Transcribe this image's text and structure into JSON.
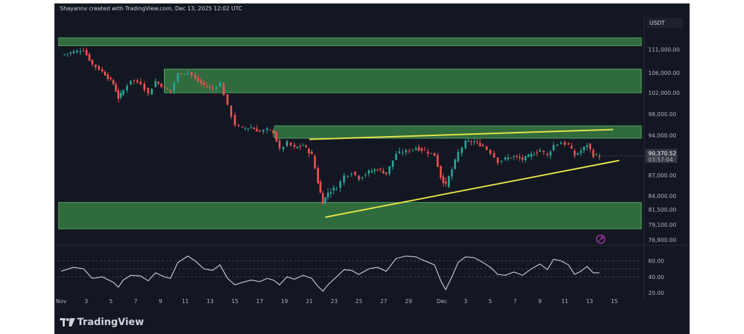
{
  "credit": "Shayannv created with TradingView.com, Dec 13, 2025 12:02 UTC",
  "currency_label": "USDT",
  "brand": "TradingView",
  "colors": {
    "background": "#131722",
    "up": "#26a69a",
    "down": "#ef5350",
    "zone": "#3c8c4a",
    "trendline": "#e9e64a",
    "rsi": "#c9cbd8"
  },
  "chart_data": [
    {
      "type": "candlestick",
      "ylim": [
        76900,
        115000
      ],
      "y_ticks": [
        "111,000.00",
        "106,000.00",
        "102,000.00",
        "98,000.00",
        "94,000.00",
        "87,000.00",
        "84,000.00",
        "81,500.00",
        "79,100.00",
        "76,900.00"
      ],
      "x_ticks": [
        "Nov",
        "3",
        "5",
        "7",
        "9",
        "11",
        "13",
        "15",
        "17",
        "19",
        "21",
        "23",
        "25",
        "27",
        "29",
        "Dec",
        "3",
        "5",
        "7",
        "9",
        "11",
        "13",
        "15"
      ],
      "last_price": "90,370.52",
      "countdown": "03:57:04",
      "close_path": [
        {
          "d": 0.0,
          "p": 109800
        },
        {
          "d": 1.0,
          "p": 110500
        },
        {
          "d": 1.8,
          "p": 110900
        },
        {
          "d": 2.5,
          "p": 107800
        },
        {
          "d": 3.3,
          "p": 106300
        },
        {
          "d": 4.2,
          "p": 103800
        },
        {
          "d": 4.6,
          "p": 101000
        },
        {
          "d": 5.0,
          "p": 102500
        },
        {
          "d": 5.6,
          "p": 104600
        },
        {
          "d": 6.4,
          "p": 103900
        },
        {
          "d": 7.0,
          "p": 101800
        },
        {
          "d": 7.6,
          "p": 104300
        },
        {
          "d": 8.3,
          "p": 103000
        },
        {
          "d": 8.8,
          "p": 102300
        },
        {
          "d": 9.4,
          "p": 105800
        },
        {
          "d": 10.2,
          "p": 106200
        },
        {
          "d": 10.8,
          "p": 104800
        },
        {
          "d": 11.5,
          "p": 103500
        },
        {
          "d": 12.2,
          "p": 102800
        },
        {
          "d": 12.8,
          "p": 103900
        },
        {
          "d": 13.4,
          "p": 99500
        },
        {
          "d": 14.0,
          "p": 96000
        },
        {
          "d": 14.6,
          "p": 95300
        },
        {
          "d": 15.3,
          "p": 95500
        },
        {
          "d": 16.0,
          "p": 94700
        },
        {
          "d": 16.6,
          "p": 95100
        },
        {
          "d": 17.1,
          "p": 94600
        },
        {
          "d": 17.6,
          "p": 91500
        },
        {
          "d": 18.2,
          "p": 92700
        },
        {
          "d": 18.8,
          "p": 91800
        },
        {
          "d": 19.5,
          "p": 92300
        },
        {
          "d": 20.2,
          "p": 90500
        },
        {
          "d": 20.7,
          "p": 86000
        },
        {
          "d": 21.1,
          "p": 82800
        },
        {
          "d": 21.5,
          "p": 84500
        },
        {
          "d": 22.2,
          "p": 85200
        },
        {
          "d": 22.8,
          "p": 86900
        },
        {
          "d": 23.4,
          "p": 87500
        },
        {
          "d": 24.0,
          "p": 86600
        },
        {
          "d": 24.8,
          "p": 87600
        },
        {
          "d": 25.5,
          "p": 88100
        },
        {
          "d": 26.2,
          "p": 87300
        },
        {
          "d": 27.0,
          "p": 90800
        },
        {
          "d": 27.8,
          "p": 91200
        },
        {
          "d": 28.6,
          "p": 91800
        },
        {
          "d": 29.3,
          "p": 91300
        },
        {
          "d": 30.1,
          "p": 90500
        },
        {
          "d": 30.6,
          "p": 86800
        },
        {
          "d": 31.0,
          "p": 85500
        },
        {
          "d": 31.5,
          "p": 88000
        },
        {
          "d": 32.0,
          "p": 91000
        },
        {
          "d": 32.6,
          "p": 92800
        },
        {
          "d": 33.3,
          "p": 92900
        },
        {
          "d": 34.0,
          "p": 92100
        },
        {
          "d": 34.6,
          "p": 91000
        },
        {
          "d": 35.2,
          "p": 89400
        },
        {
          "d": 35.8,
          "p": 89900
        },
        {
          "d": 36.5,
          "p": 90300
        },
        {
          "d": 37.2,
          "p": 89800
        },
        {
          "d": 37.9,
          "p": 90600
        },
        {
          "d": 38.6,
          "p": 91400
        },
        {
          "d": 39.2,
          "p": 90500
        },
        {
          "d": 39.7,
          "p": 92300
        },
        {
          "d": 40.3,
          "p": 92700
        },
        {
          "d": 40.9,
          "p": 92300
        },
        {
          "d": 41.4,
          "p": 90500
        },
        {
          "d": 41.9,
          "p": 91300
        },
        {
          "d": 42.4,
          "p": 92400
        },
        {
          "d": 42.9,
          "p": 90500
        },
        {
          "d": 43.4,
          "p": 90400
        }
      ],
      "zones": [
        {
          "low": 111800,
          "high": 113500,
          "from_day": -1,
          "to_day": 47
        },
        {
          "low": 102000,
          "high": 106800,
          "from_day": 8.3,
          "to_day": 47
        },
        {
          "low": 93500,
          "high": 95800,
          "from_day": 17.2,
          "to_day": 47
        },
        {
          "low": 78500,
          "high": 82800,
          "from_day": -1,
          "to_day": 47
        }
      ],
      "trendlines": [
        {
          "from": {
            "day": 20.0,
            "price": 93300
          },
          "to": {
            "day": 44.5,
            "price": 95100
          }
        },
        {
          "from": {
            "day": 21.3,
            "price": 80300
          },
          "to": {
            "day": 45.0,
            "price": 89600
          }
        }
      ]
    },
    {
      "type": "line",
      "name_hint": "oscillator",
      "ylim": [
        14,
        76
      ],
      "y_ticks": [
        "60.00",
        "40.00",
        "20.00"
      ],
      "dashed_levels": [
        60,
        50,
        40
      ],
      "points": [
        {
          "d": 0.0,
          "v": 47
        },
        {
          "d": 1.0,
          "v": 52
        },
        {
          "d": 1.8,
          "v": 50
        },
        {
          "d": 2.5,
          "v": 38
        },
        {
          "d": 3.3,
          "v": 40
        },
        {
          "d": 4.2,
          "v": 33
        },
        {
          "d": 4.6,
          "v": 27
        },
        {
          "d": 5.0,
          "v": 36
        },
        {
          "d": 5.6,
          "v": 42
        },
        {
          "d": 6.4,
          "v": 41
        },
        {
          "d": 7.0,
          "v": 35
        },
        {
          "d": 7.6,
          "v": 45
        },
        {
          "d": 8.3,
          "v": 40
        },
        {
          "d": 8.8,
          "v": 38
        },
        {
          "d": 9.4,
          "v": 58
        },
        {
          "d": 10.2,
          "v": 66
        },
        {
          "d": 10.8,
          "v": 60
        },
        {
          "d": 11.5,
          "v": 50
        },
        {
          "d": 12.2,
          "v": 48
        },
        {
          "d": 12.8,
          "v": 55
        },
        {
          "d": 13.4,
          "v": 38
        },
        {
          "d": 14.0,
          "v": 30
        },
        {
          "d": 14.6,
          "v": 33
        },
        {
          "d": 15.3,
          "v": 36
        },
        {
          "d": 16.0,
          "v": 34
        },
        {
          "d": 16.6,
          "v": 38
        },
        {
          "d": 17.1,
          "v": 36
        },
        {
          "d": 17.6,
          "v": 30
        },
        {
          "d": 18.2,
          "v": 40
        },
        {
          "d": 18.8,
          "v": 37
        },
        {
          "d": 19.5,
          "v": 42
        },
        {
          "d": 20.2,
          "v": 38
        },
        {
          "d": 20.7,
          "v": 28
        },
        {
          "d": 21.1,
          "v": 22
        },
        {
          "d": 21.5,
          "v": 30
        },
        {
          "d": 22.2,
          "v": 40
        },
        {
          "d": 22.8,
          "v": 49
        },
        {
          "d": 23.4,
          "v": 48
        },
        {
          "d": 24.0,
          "v": 43
        },
        {
          "d": 24.8,
          "v": 50
        },
        {
          "d": 25.5,
          "v": 52
        },
        {
          "d": 26.2,
          "v": 47
        },
        {
          "d": 27.0,
          "v": 63
        },
        {
          "d": 27.8,
          "v": 66
        },
        {
          "d": 28.6,
          "v": 65
        },
        {
          "d": 29.3,
          "v": 60
        },
        {
          "d": 30.1,
          "v": 55
        },
        {
          "d": 30.6,
          "v": 35
        },
        {
          "d": 31.0,
          "v": 24
        },
        {
          "d": 31.5,
          "v": 40
        },
        {
          "d": 32.0,
          "v": 58
        },
        {
          "d": 32.6,
          "v": 65
        },
        {
          "d": 33.3,
          "v": 64
        },
        {
          "d": 34.0,
          "v": 58
        },
        {
          "d": 34.6,
          "v": 52
        },
        {
          "d": 35.2,
          "v": 43
        },
        {
          "d": 35.8,
          "v": 42
        },
        {
          "d": 36.5,
          "v": 46
        },
        {
          "d": 37.2,
          "v": 42
        },
        {
          "d": 37.9,
          "v": 50
        },
        {
          "d": 38.6,
          "v": 56
        },
        {
          "d": 39.2,
          "v": 49
        },
        {
          "d": 39.7,
          "v": 62
        },
        {
          "d": 40.3,
          "v": 60
        },
        {
          "d": 40.9,
          "v": 55
        },
        {
          "d": 41.4,
          "v": 43
        },
        {
          "d": 41.9,
          "v": 47
        },
        {
          "d": 42.4,
          "v": 53
        },
        {
          "d": 42.9,
          "v": 45
        },
        {
          "d": 43.4,
          "v": 45
        }
      ]
    }
  ]
}
